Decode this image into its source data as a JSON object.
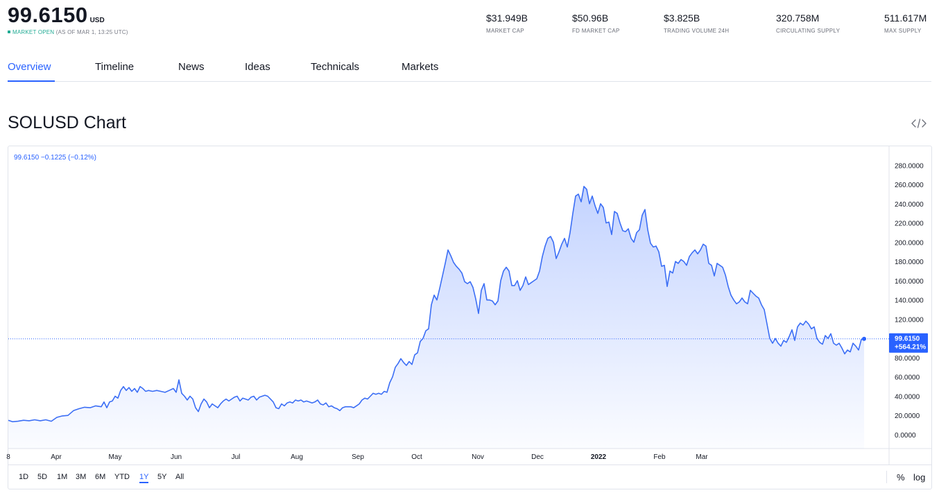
{
  "header": {
    "price": "99.6150",
    "currency": "USD",
    "status_open": "MARKET OPEN",
    "status_asof": "(AS OF MAR 1, 13:25 UTC)",
    "stats": [
      {
        "value": "$31.949B",
        "label": "MARKET CAP"
      },
      {
        "value": "$50.96B",
        "label": "FD MARKET CAP"
      },
      {
        "value": "$3.825B",
        "label": "TRADING VOLUME 24H"
      },
      {
        "value": "320.758M",
        "label": "CIRCULATING SUPPLY"
      },
      {
        "value": "511.617M",
        "label": "MAX SUPPLY"
      }
    ]
  },
  "tabs": [
    "Overview",
    "Timeline",
    "News",
    "Ideas",
    "Technicals",
    "Markets"
  ],
  "active_tab": "Overview",
  "chart_title": "SOLUSD Chart",
  "embed_icon": "code-embed-icon",
  "legend": "99.6150 −0.1225 (−0.12%)",
  "last_price_label": "99.6150",
  "last_change_label": "+564.21%",
  "time_ranges": [
    "1D",
    "5D",
    "1M",
    "3M",
    "6M",
    "YTD",
    "1Y",
    "5Y",
    "All"
  ],
  "active_range": "1Y",
  "scale_options": [
    "%",
    "log"
  ],
  "colors": {
    "accent": "#2962ff",
    "line": "#3b6ef5",
    "market_open": "#22ab94"
  },
  "chart_data": {
    "type": "area",
    "title": "",
    "xlabel": "",
    "ylabel": "",
    "ylim": [
      -10,
      290
    ],
    "y_ticks": [
      "280.0000",
      "260.0000",
      "240.0000",
      "220.0000",
      "200.0000",
      "180.0000",
      "160.0000",
      "140.0000",
      "120.0000",
      "100.0000",
      "80.0000",
      "60.0000",
      "40.0000",
      "20.0000",
      "0.0000"
    ],
    "x_ticks": [
      {
        "label": "8",
        "t": 0
      },
      {
        "label": "Apr",
        "t": 0.069
      },
      {
        "label": "May",
        "t": 0.154
      },
      {
        "label": "Jun",
        "t": 0.242
      },
      {
        "label": "Jul",
        "t": 0.328
      },
      {
        "label": "Aug",
        "t": 0.416
      },
      {
        "label": "Sep",
        "t": 0.504
      },
      {
        "label": "Oct",
        "t": 0.589
      },
      {
        "label": "Nov",
        "t": 0.677
      },
      {
        "label": "Dec",
        "t": 0.763
      },
      {
        "label": "2022",
        "t": 0.851
      },
      {
        "label": "Feb",
        "t": 0.939
      },
      {
        "label": "Mar",
        "t": 1.0
      }
    ],
    "grid": false,
    "last_value": 99.615,
    "series": [
      {
        "values": [
          [
            0,
            15
          ],
          [
            0.006,
            13.5
          ],
          [
            0.014,
            14
          ],
          [
            0.022,
            15
          ],
          [
            0.03,
            14.5
          ],
          [
            0.038,
            15.5
          ],
          [
            0.046,
            14.5
          ],
          [
            0.054,
            15.5
          ],
          [
            0.062,
            14
          ],
          [
            0.07,
            18
          ],
          [
            0.078,
            19.5
          ],
          [
            0.086,
            20
          ],
          [
            0.094,
            25
          ],
          [
            0.102,
            27
          ],
          [
            0.11,
            28.5
          ],
          [
            0.118,
            28
          ],
          [
            0.126,
            30
          ],
          [
            0.134,
            29
          ],
          [
            0.138,
            34
          ],
          [
            0.142,
            28
          ],
          [
            0.146,
            34
          ],
          [
            0.15,
            35
          ],
          [
            0.154,
            40
          ],
          [
            0.158,
            38
          ],
          [
            0.162,
            46
          ],
          [
            0.166,
            50
          ],
          [
            0.17,
            46
          ],
          [
            0.174,
            49
          ],
          [
            0.178,
            45
          ],
          [
            0.182,
            48
          ],
          [
            0.186,
            44
          ],
          [
            0.19,
            50
          ],
          [
            0.194,
            48
          ],
          [
            0.198,
            45
          ],
          [
            0.202,
            46
          ],
          [
            0.208,
            45
          ],
          [
            0.214,
            46
          ],
          [
            0.22,
            45
          ],
          [
            0.226,
            44
          ],
          [
            0.232,
            46
          ],
          [
            0.238,
            48
          ],
          [
            0.242,
            44
          ],
          [
            0.246,
            57
          ],
          [
            0.25,
            43
          ],
          [
            0.254,
            40
          ],
          [
            0.258,
            36
          ],
          [
            0.262,
            40
          ],
          [
            0.266,
            37
          ],
          [
            0.27,
            28
          ],
          [
            0.274,
            24
          ],
          [
            0.278,
            32
          ],
          [
            0.282,
            37
          ],
          [
            0.286,
            34
          ],
          [
            0.29,
            28
          ],
          [
            0.294,
            32
          ],
          [
            0.298,
            30
          ],
          [
            0.302,
            28
          ],
          [
            0.306,
            32
          ],
          [
            0.31,
            35
          ],
          [
            0.314,
            37
          ],
          [
            0.318,
            35
          ],
          [
            0.322,
            37
          ],
          [
            0.326,
            39
          ],
          [
            0.33,
            40
          ],
          [
            0.334,
            35
          ],
          [
            0.338,
            38
          ],
          [
            0.342,
            37
          ],
          [
            0.346,
            36
          ],
          [
            0.35,
            39
          ],
          [
            0.354,
            40
          ],
          [
            0.358,
            36
          ],
          [
            0.362,
            39
          ],
          [
            0.366,
            40
          ],
          [
            0.37,
            41
          ],
          [
            0.374,
            40
          ],
          [
            0.378,
            37
          ],
          [
            0.382,
            34
          ],
          [
            0.386,
            28
          ],
          [
            0.39,
            27
          ],
          [
            0.394,
            32
          ],
          [
            0.398,
            30
          ],
          [
            0.402,
            33
          ],
          [
            0.406,
            34
          ],
          [
            0.41,
            33
          ],
          [
            0.414,
            36
          ],
          [
            0.418,
            35
          ],
          [
            0.422,
            36
          ],
          [
            0.426,
            34
          ],
          [
            0.43,
            35
          ],
          [
            0.434,
            34
          ],
          [
            0.438,
            33
          ],
          [
            0.442,
            34
          ],
          [
            0.446,
            36
          ],
          [
            0.45,
            32
          ],
          [
            0.454,
            31
          ],
          [
            0.458,
            33
          ],
          [
            0.462,
            29
          ],
          [
            0.466,
            30
          ],
          [
            0.47,
            28
          ],
          [
            0.474,
            27
          ],
          [
            0.478,
            25
          ],
          [
            0.482,
            28
          ],
          [
            0.486,
            29
          ],
          [
            0.49,
            29
          ],
          [
            0.494,
            29
          ],
          [
            0.498,
            28
          ],
          [
            0.502,
            30
          ],
          [
            0.506,
            32
          ],
          [
            0.51,
            36
          ],
          [
            0.514,
            38
          ],
          [
            0.518,
            37
          ],
          [
            0.522,
            40
          ],
          [
            0.526,
            43
          ],
          [
            0.53,
            42
          ],
          [
            0.534,
            43
          ],
          [
            0.538,
            42
          ],
          [
            0.542,
            45
          ],
          [
            0.546,
            44
          ],
          [
            0.55,
            54
          ],
          [
            0.554,
            60
          ],
          [
            0.558,
            70
          ],
          [
            0.562,
            74
          ],
          [
            0.566,
            79
          ],
          [
            0.57,
            75
          ],
          [
            0.574,
            72
          ],
          [
            0.578,
            76
          ],
          [
            0.582,
            73
          ],
          [
            0.586,
            83
          ],
          [
            0.59,
            85
          ],
          [
            0.594,
            97
          ],
          [
            0.598,
            100
          ],
          [
            0.602,
            108
          ],
          [
            0.606,
            110
          ],
          [
            0.61,
            135
          ],
          [
            0.614,
            145
          ],
          [
            0.618,
            140
          ],
          [
            0.622,
            152
          ],
          [
            0.626,
            165
          ],
          [
            0.63,
            178
          ],
          [
            0.634,
            192
          ],
          [
            0.638,
            186
          ],
          [
            0.642,
            179
          ],
          [
            0.646,
            175
          ],
          [
            0.65,
            172
          ],
          [
            0.654,
            168
          ],
          [
            0.658,
            159
          ],
          [
            0.662,
            157
          ],
          [
            0.666,
            159
          ],
          [
            0.67,
            153
          ],
          [
            0.674,
            141
          ],
          [
            0.678,
            126
          ],
          [
            0.682,
            150
          ],
          [
            0.686,
            157
          ],
          [
            0.69,
            140
          ],
          [
            0.694,
            140
          ],
          [
            0.698,
            139
          ],
          [
            0.702,
            135
          ],
          [
            0.706,
            139
          ],
          [
            0.71,
            160
          ],
          [
            0.714,
            170
          ],
          [
            0.718,
            174
          ],
          [
            0.722,
            170
          ],
          [
            0.726,
            155
          ],
          [
            0.73,
            155
          ],
          [
            0.734,
            160
          ],
          [
            0.738,
            150
          ],
          [
            0.742,
            155
          ],
          [
            0.746,
            164
          ],
          [
            0.75,
            156
          ],
          [
            0.754,
            158
          ],
          [
            0.758,
            160
          ],
          [
            0.762,
            162
          ],
          [
            0.766,
            170
          ],
          [
            0.77,
            185
          ],
          [
            0.774,
            196
          ],
          [
            0.778,
            204
          ],
          [
            0.782,
            206
          ],
          [
            0.786,
            200
          ],
          [
            0.79,
            183
          ],
          [
            0.794,
            190
          ],
          [
            0.798,
            198
          ],
          [
            0.802,
            204
          ],
          [
            0.806,
            195
          ],
          [
            0.81,
            210
          ],
          [
            0.814,
            230
          ],
          [
            0.818,
            248
          ],
          [
            0.822,
            250
          ],
          [
            0.826,
            242
          ],
          [
            0.83,
            258
          ],
          [
            0.834,
            255
          ],
          [
            0.838,
            240
          ],
          [
            0.842,
            248
          ],
          [
            0.846,
            238
          ],
          [
            0.85,
            230
          ],
          [
            0.854,
            240
          ],
          [
            0.858,
            236
          ],
          [
            0.862,
            220
          ],
          [
            0.866,
            221
          ],
          [
            0.87,
            208
          ],
          [
            0.874,
            232
          ],
          [
            0.878,
            230
          ],
          [
            0.882,
            220
          ],
          [
            0.886,
            212
          ],
          [
            0.89,
            211
          ],
          [
            0.894,
            214
          ],
          [
            0.898,
            204
          ],
          [
            0.902,
            200
          ],
          [
            0.906,
            210
          ],
          [
            0.91,
            213
          ],
          [
            0.914,
            228
          ],
          [
            0.918,
            234
          ],
          [
            0.922,
            213
          ],
          [
            0.926,
            199
          ],
          [
            0.93,
            195
          ],
          [
            0.934,
            196
          ],
          [
            0.938,
            190
          ],
          [
            0.942,
            175
          ],
          [
            0.946,
            176
          ],
          [
            0.95,
            154
          ],
          [
            0.954,
            170
          ],
          [
            0.958,
            168
          ],
          [
            0.962,
            180
          ],
          [
            0.966,
            178
          ],
          [
            0.97,
            182
          ],
          [
            0.974,
            180
          ],
          [
            0.978,
            176
          ],
          [
            0.982,
            185
          ],
          [
            0.986,
            189
          ],
          [
            0.99,
            192
          ],
          [
            0.994,
            188
          ],
          [
            0.998,
            192
          ],
          [
            1.002,
            198
          ],
          [
            1.006,
            196
          ],
          [
            1.01,
            178
          ],
          [
            1.014,
            176
          ],
          [
            1.018,
            165
          ],
          [
            1.022,
            178
          ],
          [
            1.026,
            176
          ],
          [
            1.03,
            174
          ],
          [
            1.034,
            166
          ],
          [
            1.038,
            154
          ],
          [
            1.042,
            145
          ],
          [
            1.046,
            140
          ],
          [
            1.05,
            136
          ],
          [
            1.054,
            138
          ],
          [
            1.058,
            142
          ],
          [
            1.062,
            138
          ],
          [
            1.066,
            136
          ],
          [
            1.07,
            150
          ],
          [
            1.074,
            147
          ],
          [
            1.078,
            144
          ],
          [
            1.082,
            142
          ],
          [
            1.086,
            135
          ],
          [
            1.09,
            130
          ],
          [
            1.094,
            115
          ],
          [
            1.098,
            100
          ],
          [
            1.102,
            95
          ],
          [
            1.106,
            100
          ],
          [
            1.11,
            95
          ],
          [
            1.114,
            92
          ],
          [
            1.118,
            98
          ],
          [
            1.122,
            96
          ],
          [
            1.126,
            102
          ],
          [
            1.13,
            109
          ],
          [
            1.134,
            98
          ],
          [
            1.138,
            112
          ],
          [
            1.142,
            116
          ],
          [
            1.146,
            114
          ],
          [
            1.15,
            118
          ],
          [
            1.154,
            115
          ],
          [
            1.158,
            110
          ],
          [
            1.162,
            112
          ],
          [
            1.166,
            100
          ],
          [
            1.17,
            96
          ],
          [
            1.174,
            94
          ],
          [
            1.178,
            103
          ],
          [
            1.182,
            100
          ],
          [
            1.186,
            105
          ],
          [
            1.19,
            95
          ],
          [
            1.194,
            93
          ],
          [
            1.198,
            95
          ],
          [
            1.202,
            90
          ],
          [
            1.206,
            84
          ],
          [
            1.21,
            88
          ],
          [
            1.214,
            86
          ],
          [
            1.218,
            95
          ],
          [
            1.222,
            92
          ],
          [
            1.226,
            88
          ],
          [
            1.23,
            99
          ],
          [
            1.234,
            99.6
          ]
        ]
      }
    ]
  }
}
